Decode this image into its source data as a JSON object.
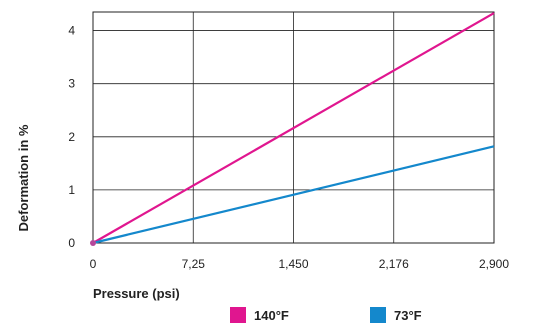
{
  "chart_data": {
    "type": "line",
    "xlabel": "Pressure (psi)",
    "ylabel": "Deformation in %",
    "x_ticks": [
      "0",
      "7,25",
      "1,450",
      "2,176",
      "2,900"
    ],
    "y_ticks": [
      "0",
      "1",
      "2",
      "3",
      "4"
    ],
    "xlim": [
      0,
      4
    ],
    "ylim": [
      0,
      4.35
    ],
    "grid": true,
    "legend_position": "bottom",
    "series": [
      {
        "name": "140°F",
        "color": "#e0168f",
        "x": [
          0,
          4
        ],
        "y": [
          0,
          4.33
        ]
      },
      {
        "name": "73°F",
        "color": "#1488cc",
        "x": [
          0,
          4
        ],
        "y": [
          0,
          1.82
        ]
      }
    ]
  }
}
